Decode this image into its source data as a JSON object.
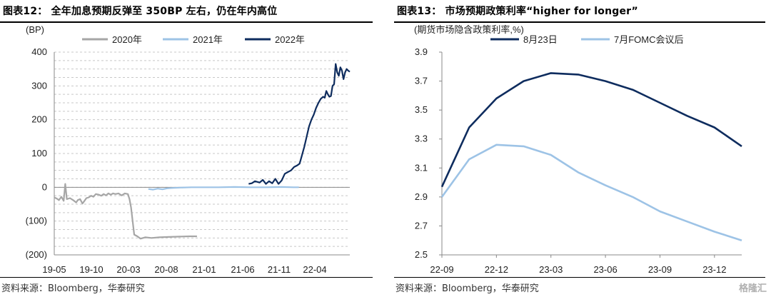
{
  "left": {
    "title": "图表12： 全年加息预期反弹至 350BP 左右，仍在年内高位",
    "source": "资料来源：Bloomberg，华泰研究",
    "chart_data": {
      "type": "line",
      "ylabel": "(BP)",
      "ylim": [
        -200,
        400
      ],
      "yticks": [
        400,
        300,
        200,
        100,
        0,
        -100,
        -200
      ],
      "ytick_labels": [
        "400",
        "300",
        "200",
        "100",
        "0",
        "(100)",
        "(200)"
      ],
      "xtick_labels": [
        "19-05",
        "19-10",
        "20-03",
        "20-08",
        "21-01",
        "21-06",
        "21-11",
        "22-04"
      ],
      "grid": "horizontal dashed",
      "legend": "top",
      "series": [
        {
          "name": "2020年",
          "color": "#a6a6a6",
          "points": [
            [
              0,
              -30
            ],
            [
              3,
              -33
            ],
            [
              6,
              -38
            ],
            [
              9,
              -28
            ],
            [
              12,
              -40
            ],
            [
              14,
              10
            ],
            [
              16,
              -35
            ],
            [
              20,
              -32
            ],
            [
              24,
              -38
            ],
            [
              28,
              -45
            ],
            [
              30,
              -38
            ],
            [
              33,
              -35
            ],
            [
              36,
              -48
            ],
            [
              38,
              -42
            ],
            [
              41,
              -32
            ],
            [
              44,
              -30
            ],
            [
              47,
              -25
            ],
            [
              50,
              -28
            ],
            [
              53,
              -20
            ],
            [
              57,
              -22
            ],
            [
              60,
              -25
            ],
            [
              63,
              -20
            ],
            [
              66,
              -24
            ],
            [
              69,
              -18
            ],
            [
              72,
              -22
            ],
            [
              75,
              -18
            ],
            [
              78,
              -20
            ],
            [
              82,
              -18
            ],
            [
              86,
              -24
            ],
            [
              90,
              -18
            ],
            [
              94,
              -20
            ],
            [
              96,
              -35
            ],
            [
              98,
              -60
            ],
            [
              100,
              -100
            ],
            [
              102,
              -140
            ],
            [
              106,
              -145
            ],
            [
              110,
              -152
            ],
            [
              116,
              -148
            ],
            [
              124,
              -150
            ],
            [
              134,
              -148
            ],
            [
              146,
              -147
            ],
            [
              160,
              -146
            ],
            [
              172,
              -145
            ],
            [
              182,
              -145
            ]
          ]
        },
        {
          "name": "2021年",
          "color": "#9dc3e6",
          "points": [
            [
              120,
              -5
            ],
            [
              126,
              -7
            ],
            [
              132,
              -4
            ],
            [
              138,
              -6
            ],
            [
              144,
              -3
            ],
            [
              150,
              -2
            ],
            [
              160,
              -1
            ],
            [
              175,
              0
            ],
            [
              190,
              0
            ],
            [
              210,
              0
            ],
            [
              230,
              1
            ],
            [
              250,
              0
            ],
            [
              270,
              0
            ],
            [
              290,
              1
            ],
            [
              305,
              0
            ],
            [
              312,
              0
            ]
          ]
        },
        {
          "name": "2022年",
          "color": "#0e2c5e",
          "points": [
            [
              248,
              10
            ],
            [
              252,
              12
            ],
            [
              256,
              18
            ],
            [
              262,
              14
            ],
            [
              266,
              22
            ],
            [
              270,
              10
            ],
            [
              274,
              18
            ],
            [
              278,
              12
            ],
            [
              282,
              25
            ],
            [
              286,
              10
            ],
            [
              290,
              20
            ],
            [
              294,
              40
            ],
            [
              298,
              45
            ],
            [
              302,
              50
            ],
            [
              306,
              60
            ],
            [
              310,
              65
            ],
            [
              313,
              70
            ],
            [
              316,
              95
            ],
            [
              319,
              120
            ],
            [
              322,
              150
            ],
            [
              325,
              180
            ],
            [
              328,
              200
            ],
            [
              331,
              215
            ],
            [
              334,
              235
            ],
            [
              337,
              250
            ],
            [
              340,
              262
            ],
            [
              343,
              268
            ],
            [
              345,
              265
            ],
            [
              347,
              285
            ],
            [
              349,
              275
            ],
            [
              351,
              268
            ],
            [
              353,
              270
            ],
            [
              355,
              300
            ],
            [
              357,
              305
            ],
            [
              359,
              365
            ],
            [
              361,
              340
            ],
            [
              363,
              330
            ],
            [
              365,
              355
            ],
            [
              367,
              345
            ],
            [
              369,
              320
            ],
            [
              371,
              340
            ],
            [
              373,
              350
            ],
            [
              375,
              345
            ],
            [
              377,
              342
            ]
          ]
        }
      ]
    }
  },
  "right": {
    "title": "图表13： 市场预期政策利率“higher for longer”",
    "source": "资料来源：Bloomberg，华泰研究",
    "watermark": "格隆汇",
    "chart_data": {
      "type": "line",
      "ylabel": "(期货市场隐含政策利率,%)",
      "ylim": [
        2.5,
        3.9
      ],
      "yticks": [
        3.9,
        3.7,
        3.5,
        3.3,
        3.1,
        2.9,
        2.7,
        2.5
      ],
      "ytick_labels": [
        "3.9",
        "3.7",
        "3.5",
        "3.3",
        "3.1",
        "2.9",
        "2.7",
        "2.5"
      ],
      "xtick_labels": [
        "22-09",
        "22-12",
        "23-03",
        "23-06",
        "23-09",
        "23-12"
      ],
      "grid": "none",
      "legend": "top",
      "series": [
        {
          "name": "8月23日",
          "color": "#0e2c5e",
          "points": [
            [
              0,
              2.97
            ],
            [
              1,
              3.38
            ],
            [
              2,
              3.58
            ],
            [
              3,
              3.7
            ],
            [
              4,
              3.755
            ],
            [
              5,
              3.745
            ],
            [
              6,
              3.7
            ],
            [
              7,
              3.64
            ],
            [
              8,
              3.55
            ],
            [
              9,
              3.46
            ],
            [
              10,
              3.38
            ],
            [
              11,
              3.25
            ]
          ]
        },
        {
          "name": "7月FOMC会议后",
          "color": "#9dc3e6",
          "points": [
            [
              0,
              2.9
            ],
            [
              1,
              3.16
            ],
            [
              2,
              3.26
            ],
            [
              3,
              3.25
            ],
            [
              4,
              3.19
            ],
            [
              5,
              3.07
            ],
            [
              6,
              2.98
            ],
            [
              7,
              2.9
            ],
            [
              8,
              2.8
            ],
            [
              9,
              2.73
            ],
            [
              10,
              2.66
            ],
            [
              11,
              2.6
            ]
          ]
        }
      ]
    }
  }
}
